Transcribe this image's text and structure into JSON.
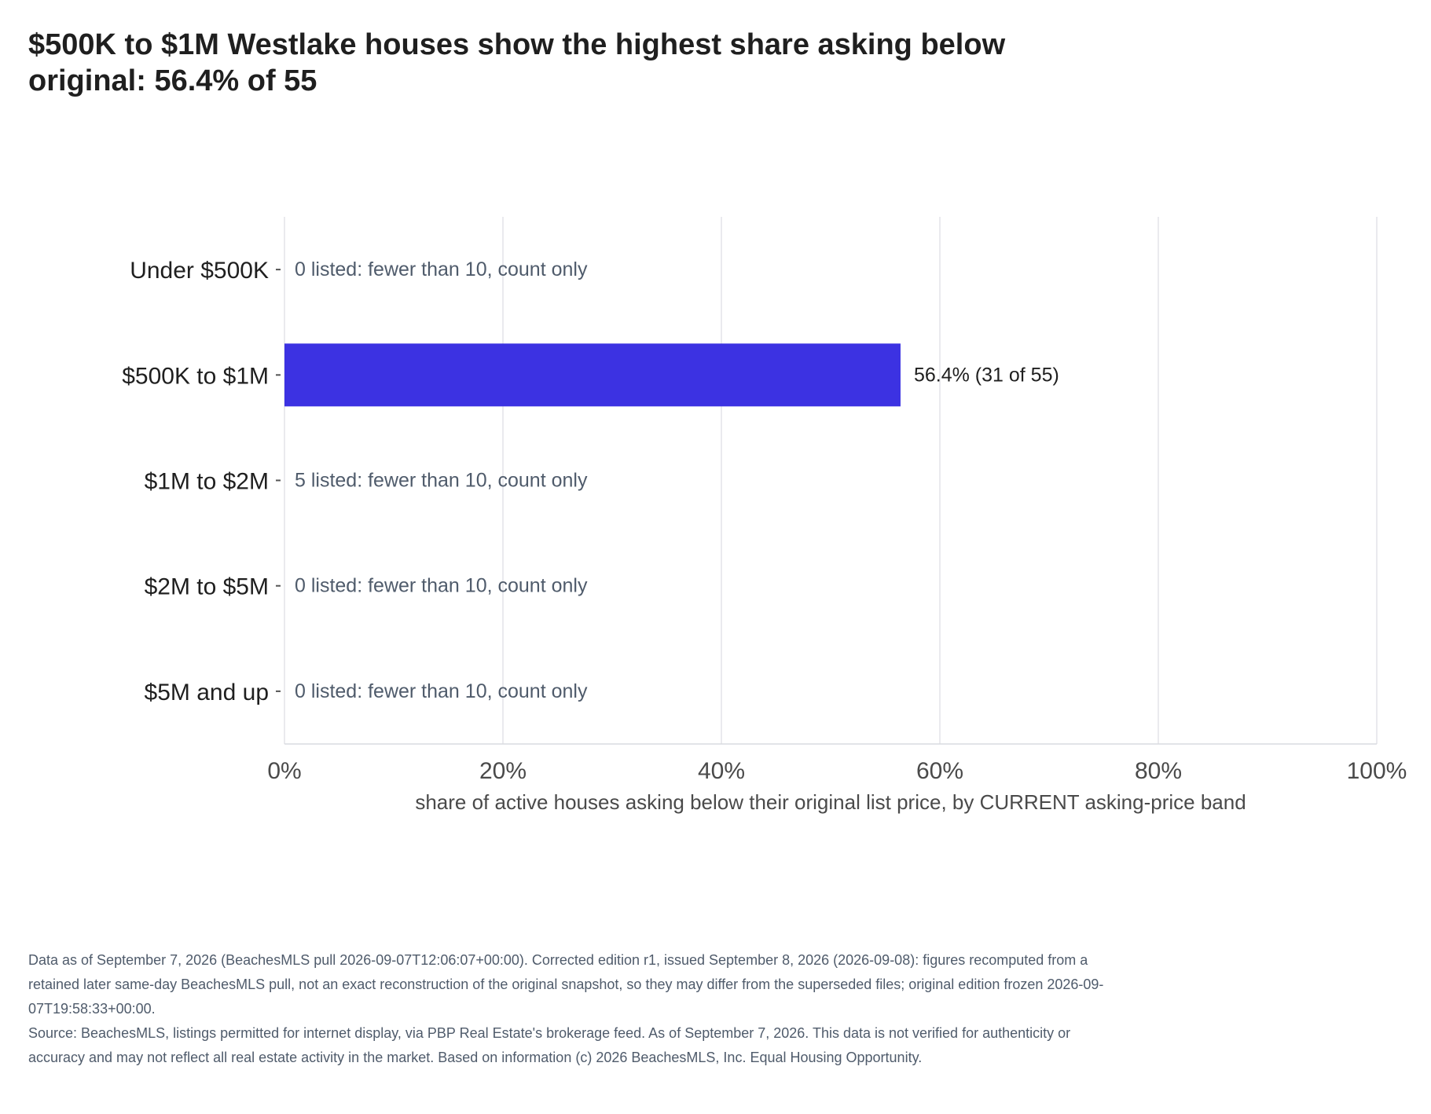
{
  "title": "$500K to $1M Westlake houses show the highest share asking below original: 56.4% of 55",
  "chart_data": {
    "type": "bar",
    "orientation": "horizontal",
    "categories": [
      "Under $500K",
      "$500K to $1M",
      "$1M to $2M",
      "$2M to $5M",
      "$5M and up"
    ],
    "values": [
      null,
      56.4,
      null,
      null,
      null
    ],
    "bar_labels": [
      "0 listed: fewer than 10, count only",
      "56.4%  (31 of 55)",
      "5 listed: fewer than 10, count only",
      "0 listed: fewer than 10, count only",
      "0 listed: fewer than 10, count only"
    ],
    "x_ticks": [
      "0%",
      "20%",
      "40%",
      "60%",
      "80%",
      "100%"
    ],
    "xlabel": "share of active houses asking below their original list price, by CURRENT asking-price band",
    "ylabel": "",
    "xlim": [
      0,
      100
    ],
    "grid": true,
    "bar_color": "#3c32e2",
    "note_color": "#4f5b6b"
  },
  "footnotes": [
    "Data as of September 7, 2026 (BeachesMLS pull 2026-09-07T12:06:07+00:00). Corrected edition r1, issued September 8, 2026 (2026-09-08): figures recomputed from a retained later same-day BeachesMLS pull, not an exact reconstruction of the original snapshot, so they may differ from the superseded files; original edition frozen 2026-09-07T19:58:33+00:00.",
    "Source: BeachesMLS, listings permitted for internet display, via PBP Real Estate's brokerage feed. As of September 7, 2026. This data is not verified for authenticity or accuracy and may not reflect all real estate activity in the market. Based on information (c) 2026 BeachesMLS, Inc. Equal Housing Opportunity."
  ]
}
